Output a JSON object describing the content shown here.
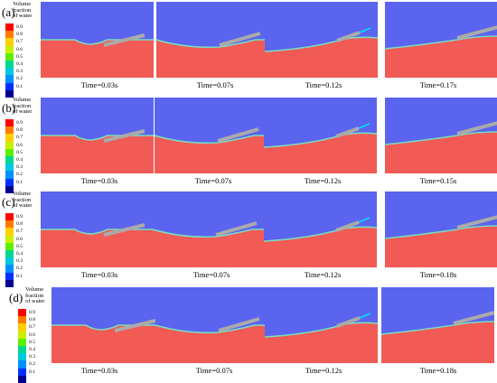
{
  "legend": {
    "title_lines": [
      "Volume",
      "fraction",
      "of water"
    ],
    "ticks": [
      "0.9",
      "0.8",
      "0.7",
      "0.6",
      "0.5",
      "0.4",
      "0.3",
      "0.2",
      "0.1"
    ],
    "colors": [
      "#ff0000",
      "#ff7a00",
      "#ffd000",
      "#c8f000",
      "#5cf000",
      "#00d890",
      "#00c8e0",
      "#0090ff",
      "#0030ff",
      "#000090"
    ]
  },
  "colors": {
    "air": "#5a64ee",
    "water": "#f15a55",
    "interface": "#7adcc0",
    "plate": "#aaaaaa"
  },
  "rows": [
    {
      "label": "(a)",
      "times": [
        "Time=0.03s",
        "Time=0.07s",
        "Time=0.12s",
        "Time=0.17s"
      ]
    },
    {
      "label": "(b)",
      "times": [
        "Time=0.03s",
        "Time=0.07s",
        "Time=0.12s",
        "Time=0.15s"
      ]
    },
    {
      "label": "(c)",
      "times": [
        "Time=0.03s",
        "Time=0.07s",
        "Time=0.12s",
        "Time=0.18s"
      ]
    },
    {
      "label": "(d)",
      "times": [
        "Time=0.03s",
        "Time=0.07s",
        "Time=0.12s",
        "Time=0.18s"
      ]
    }
  ]
}
